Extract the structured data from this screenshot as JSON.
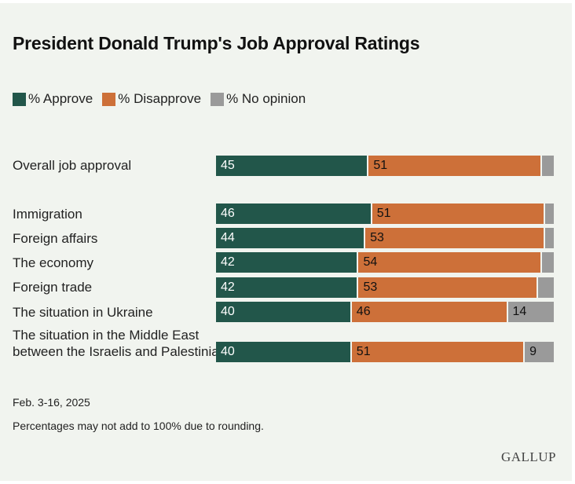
{
  "chart_data": {
    "type": "bar",
    "orientation": "horizontal",
    "stacked": true,
    "title": "President Donald Trump's Job Approval Ratings",
    "categories": [
      "Overall job approval",
      "Immigration",
      "Foreign affairs",
      "The economy",
      "Foreign trade",
      "The situation in Ukraine",
      "The situation in the Middle East between the Israelis and Palestinians"
    ],
    "series": [
      {
        "name": "% Approve",
        "color": "#22564a",
        "values": [
          45,
          46,
          44,
          42,
          42,
          40,
          40
        ]
      },
      {
        "name": "% Disapprove",
        "color": "#cd7039",
        "values": [
          51,
          51,
          53,
          54,
          53,
          46,
          51
        ]
      },
      {
        "name": "% No opinion",
        "color": "#9a9a9a",
        "values": [
          null,
          null,
          null,
          null,
          null,
          14,
          9
        ]
      }
    ],
    "xlim": [
      0,
      100
    ],
    "legend_position": "top-left",
    "grid": false
  },
  "footer": {
    "date": "Feb. 3-16, 2025",
    "note": "Percentages may not add to 100% due to rounding.",
    "logo": "GALLUP"
  }
}
